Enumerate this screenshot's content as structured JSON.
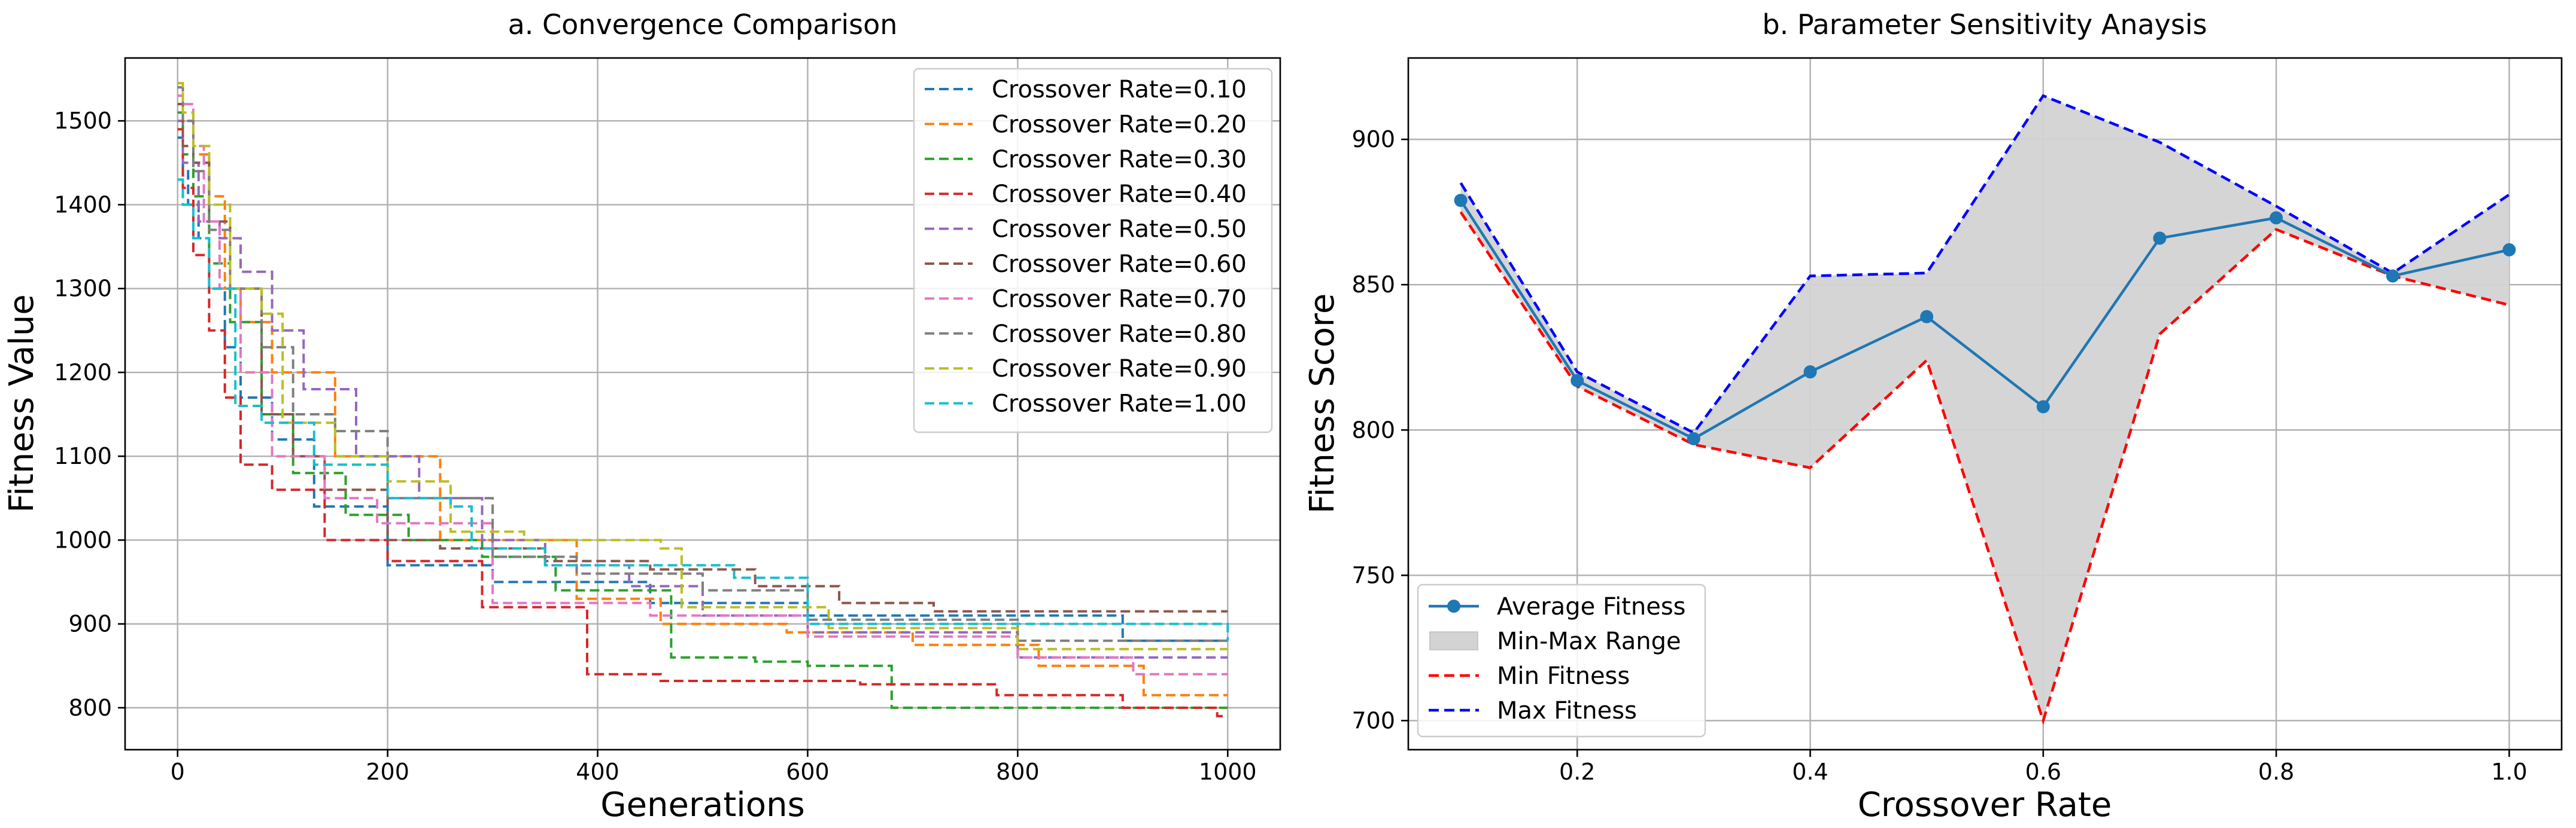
{
  "figure": {
    "background": "#ffffff"
  },
  "chart_data": [
    {
      "type": "line",
      "title": "a. Convergence Comparison",
      "xlabel": "Generations",
      "ylabel": "Fitness Value",
      "xlim": [
        -50,
        1050
      ],
      "ylim": [
        750,
        1575
      ],
      "xticks": [
        0,
        200,
        400,
        600,
        800,
        1000
      ],
      "yticks": [
        800,
        900,
        1000,
        1100,
        1200,
        1300,
        1400,
        1500
      ],
      "grid": true,
      "legend": "top-right",
      "line_style": "dashed",
      "series": [
        {
          "name": "Crossover Rate=0.10",
          "color": "#1f77b4",
          "x": [
            0,
            5,
            10,
            20,
            30,
            45,
            60,
            90,
            130,
            200,
            300,
            450,
            600,
            900,
            1000
          ],
          "y": [
            1480,
            1440,
            1400,
            1360,
            1300,
            1230,
            1170,
            1120,
            1040,
            970,
            950,
            925,
            910,
            880,
            880
          ]
        },
        {
          "name": "Crossover Rate=0.20",
          "color": "#ff7f0e",
          "x": [
            0,
            5,
            15,
            30,
            45,
            60,
            90,
            150,
            250,
            380,
            460,
            580,
            700,
            820,
            920,
            1000
          ],
          "y": [
            1520,
            1500,
            1460,
            1410,
            1300,
            1260,
            1200,
            1100,
            1000,
            930,
            900,
            890,
            875,
            850,
            815,
            815
          ]
        },
        {
          "name": "Crossover Rate=0.30",
          "color": "#2ca02c",
          "x": [
            0,
            5,
            15,
            30,
            50,
            80,
            110,
            160,
            220,
            290,
            360,
            470,
            550,
            600,
            680,
            1000
          ],
          "y": [
            1510,
            1460,
            1410,
            1330,
            1260,
            1150,
            1080,
            1030,
            1000,
            980,
            940,
            860,
            855,
            850,
            800,
            800
          ]
        },
        {
          "name": "Crossover Rate=0.40",
          "color": "#d62728",
          "x": [
            0,
            5,
            15,
            30,
            45,
            60,
            90,
            140,
            200,
            290,
            390,
            460,
            650,
            780,
            900,
            990,
            1000
          ],
          "y": [
            1490,
            1420,
            1340,
            1250,
            1170,
            1090,
            1060,
            1000,
            975,
            920,
            840,
            832,
            828,
            815,
            800,
            790,
            790
          ]
        },
        {
          "name": "Crossover Rate=0.50",
          "color": "#9467bd",
          "x": [
            0,
            5,
            20,
            40,
            60,
            90,
            120,
            170,
            230,
            290,
            350,
            430,
            500,
            600,
            800,
            1000
          ],
          "y": [
            1500,
            1450,
            1380,
            1360,
            1320,
            1250,
            1180,
            1100,
            1050,
            1000,
            970,
            945,
            910,
            890,
            860,
            860
          ]
        },
        {
          "name": "Crossover Rate=0.60",
          "color": "#8c564b",
          "x": [
            0,
            5,
            15,
            30,
            50,
            80,
            110,
            140,
            200,
            250,
            350,
            450,
            550,
            630,
            720,
            1000
          ],
          "y": [
            1520,
            1470,
            1450,
            1380,
            1300,
            1150,
            1100,
            1060,
            1000,
            990,
            975,
            965,
            945,
            925,
            915,
            915
          ]
        },
        {
          "name": "Crossover Rate=0.70",
          "color": "#e377c2",
          "x": [
            0,
            5,
            15,
            25,
            40,
            60,
            90,
            140,
            190,
            300,
            450,
            600,
            800,
            910,
            1000
          ],
          "y": [
            1530,
            1520,
            1470,
            1380,
            1300,
            1200,
            1100,
            1050,
            1020,
            925,
            910,
            885,
            860,
            840,
            840
          ]
        },
        {
          "name": "Crossover Rate=0.80",
          "color": "#7f7f7f",
          "x": [
            0,
            5,
            15,
            30,
            50,
            80,
            110,
            150,
            200,
            300,
            380,
            500,
            600,
            800,
            1000
          ],
          "y": [
            1540,
            1500,
            1440,
            1370,
            1300,
            1230,
            1150,
            1130,
            1050,
            980,
            960,
            940,
            905,
            880,
            880
          ]
        },
        {
          "name": "Crossover Rate=0.90",
          "color": "#bcbd22",
          "x": [
            0,
            5,
            15,
            30,
            50,
            80,
            100,
            150,
            200,
            260,
            330,
            460,
            480,
            620,
            800,
            1000
          ],
          "y": [
            1545,
            1510,
            1470,
            1400,
            1300,
            1270,
            1140,
            1100,
            1070,
            1010,
            1000,
            990,
            920,
            895,
            870,
            870
          ]
        },
        {
          "name": "Crossover Rate=1.00",
          "color": "#17becf",
          "x": [
            0,
            5,
            15,
            30,
            55,
            80,
            130,
            200,
            260,
            280,
            350,
            530,
            600,
            1000
          ],
          "y": [
            1430,
            1400,
            1360,
            1300,
            1160,
            1140,
            1090,
            1050,
            1040,
            990,
            970,
            955,
            900,
            880
          ]
        }
      ]
    },
    {
      "type": "line",
      "title": "b. Parameter Sensitivity Anaysis",
      "xlabel": "Crossover Rate",
      "ylabel": "Fitness Score",
      "xlim": [
        0.055,
        1.045
      ],
      "ylim": [
        690,
        928
      ],
      "xticks": [
        "0.2",
        "0.4",
        "0.6",
        "0.8",
        "1.0"
      ],
      "xtick_values": [
        0.2,
        0.4,
        0.6,
        0.8,
        1.0
      ],
      "yticks": [
        700,
        750,
        800,
        850,
        900
      ],
      "grid": true,
      "legend": "bottom-left",
      "x": [
        0.1,
        0.2,
        0.3,
        0.4,
        0.5,
        0.6,
        0.7,
        0.8,
        0.9,
        1.0
      ],
      "series": [
        {
          "name": "Average Fitness",
          "style": "solid-marker",
          "color": "#1f77b4",
          "values": [
            879,
            817,
            797,
            820,
            839,
            808,
            866,
            873,
            853,
            862
          ]
        },
        {
          "name": "Min-Max Range",
          "style": "fill",
          "color": "#d3d3d3"
        },
        {
          "name": "Min Fitness",
          "style": "dashed",
          "color": "#ff0000",
          "values": [
            875,
            815,
            795,
            787,
            824,
            700,
            833,
            869,
            853,
            843
          ]
        },
        {
          "name": "Max Fitness",
          "style": "dashed",
          "color": "#0000ff",
          "values": [
            885,
            820,
            799,
            853,
            854,
            915,
            899,
            877,
            854,
            881
          ]
        }
      ]
    }
  ]
}
